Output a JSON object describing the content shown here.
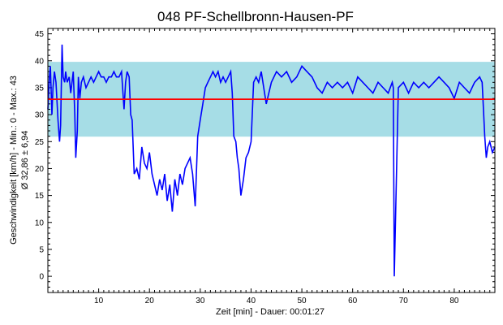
{
  "chart_data": {
    "type": "line",
    "title": "048 PF-Schellbronn-Hausen-PF",
    "xlabel": "Zeit [min] - Dauer: 00:01:27",
    "ylabel": "Geschwindigkeit [km/h] - Min.: 0 - Max.: 43",
    "ylabel2": "Ø 32,86 ± 6,94",
    "xlim": [
      0,
      88
    ],
    "ylim": [
      -3,
      46
    ],
    "x_ticks": [
      10,
      20,
      30,
      40,
      50,
      60,
      70,
      80
    ],
    "y_ticks": [
      0,
      5,
      10,
      15,
      20,
      25,
      30,
      35,
      40,
      45
    ],
    "mean": 32.86,
    "std": 6.94,
    "band": [
      25.92,
      39.8
    ],
    "colors": {
      "line": "#0000ff",
      "mean": "#ff0000",
      "band": "#a6dde6",
      "frame": "#000000"
    },
    "series": [
      {
        "x": [
          0,
          0.3,
          0.5,
          0.8,
          1,
          1.3,
          1.6,
          2,
          2.3,
          2.5,
          2.8,
          3,
          3.3,
          3.5,
          3.8,
          4.2,
          4.5,
          5,
          5.3,
          5.5,
          5.8,
          6,
          6.3,
          6.6,
          7,
          7.5,
          8,
          8.5,
          9,
          9.5,
          10,
          10.5,
          11,
          11.5,
          12,
          12.5,
          13,
          13.5,
          14,
          14.5,
          15,
          15.3,
          15.6,
          16,
          16.3,
          16.6,
          17,
          17.5,
          18,
          18.5,
          19,
          19.5,
          20,
          20.5,
          21,
          21.5,
          22,
          22.5,
          23,
          23.5,
          24,
          24.5,
          25,
          25.5,
          26,
          26.5,
          27,
          27.5,
          28,
          28.5,
          29,
          29.5,
          30,
          30.5,
          31,
          31.5,
          32,
          32.5,
          33,
          33.5,
          34,
          34.5,
          35,
          35.5,
          36,
          36.3,
          36.6,
          37,
          37.3,
          37.6,
          38,
          38.5,
          39,
          39.5,
          40,
          40.5,
          41,
          41.5,
          42,
          43,
          44,
          45,
          46,
          47,
          48,
          49,
          50,
          51,
          52,
          53,
          54,
          55,
          56,
          57,
          58,
          59,
          60,
          61,
          62,
          63,
          64,
          65,
          66,
          67,
          67.8,
          68,
          68.2,
          69,
          70,
          71,
          72,
          73,
          74,
          75,
          76,
          77,
          78,
          79,
          80,
          81,
          82,
          83,
          84,
          85,
          85.5,
          86,
          86.3,
          86.6,
          87,
          87.5,
          88
        ],
        "y": [
          31,
          37,
          39,
          30,
          35,
          38,
          36,
          29,
          25,
          28,
          43,
          37,
          36,
          38,
          36,
          37,
          34,
          38,
          30,
          22,
          27,
          37,
          33,
          36,
          37,
          35,
          36,
          37,
          36,
          37,
          38,
          37,
          37,
          36,
          37,
          37,
          38,
          37,
          37,
          38,
          31,
          36,
          38,
          37,
          30,
          29,
          19,
          20,
          18,
          24,
          21,
          20,
          23,
          19,
          17,
          15,
          18,
          16,
          19,
          14,
          17,
          12,
          18,
          15,
          19,
          17,
          20,
          21,
          22,
          19,
          13,
          26,
          29,
          32,
          35,
          36,
          37,
          38,
          37,
          38,
          36,
          37,
          36,
          37,
          38,
          34,
          26,
          25,
          22,
          20,
          15,
          18,
          22,
          23,
          25,
          36,
          37,
          36,
          38,
          32,
          36,
          38,
          37,
          38,
          36,
          37,
          39,
          38,
          37,
          35,
          34,
          36,
          35,
          36,
          35,
          36,
          34,
          37,
          36,
          35,
          34,
          36,
          35,
          34,
          36,
          35,
          0,
          35,
          36,
          34,
          36,
          35,
          36,
          35,
          36,
          37,
          36,
          35,
          33,
          36,
          35,
          34,
          36,
          37,
          36,
          26,
          22,
          24,
          25,
          23,
          24
        ]
      }
    ]
  }
}
